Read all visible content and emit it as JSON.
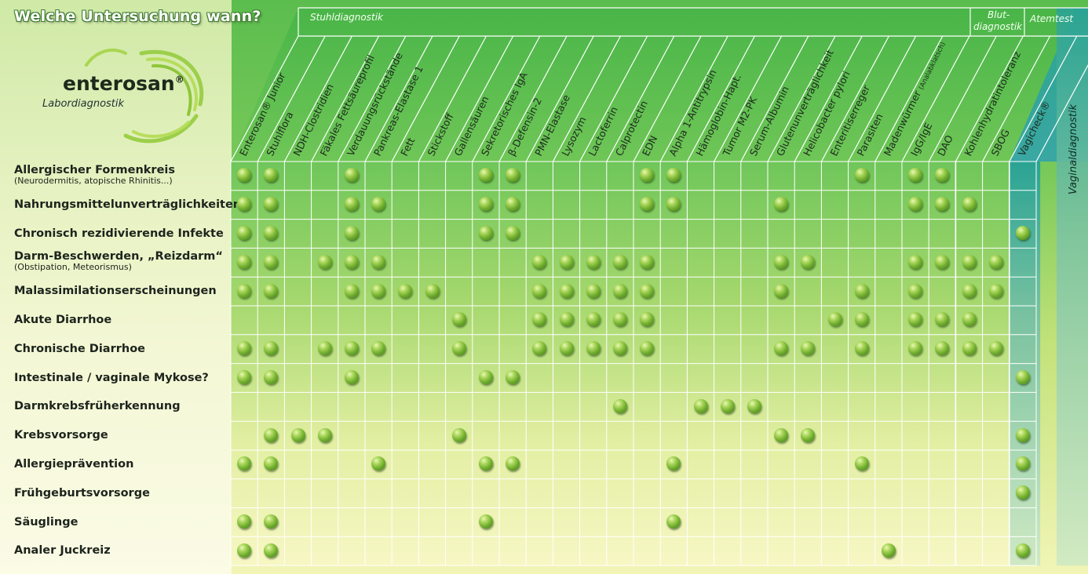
{
  "title": "Welche Untersuchung wann?",
  "brand": {
    "name": "enterosan",
    "reg": "®",
    "subtitle": "Labordiagnostik"
  },
  "categories": {
    "stuhl": "Stuhldiagnostik",
    "blut_line1": "Blut-",
    "blut_line2": "diagnostik",
    "atem": "Atemtest",
    "vaginal": "Vaginaldiagnostik"
  },
  "columns": [
    {
      "label": "Enterosan® Junior",
      "small": ""
    },
    {
      "label": "Stuhlflora",
      "small": ""
    },
    {
      "label": "NDH-Clostridien",
      "small": ""
    },
    {
      "label": "Fäkales Fettsäureprofil",
      "small": ""
    },
    {
      "label": "Verdauungsrückstände",
      "small": ""
    },
    {
      "label": "Pankreas-Elastase 1",
      "small": ""
    },
    {
      "label": "Fett",
      "small": ""
    },
    {
      "label": "Stickstoff",
      "small": ""
    },
    {
      "label": "Gallensäuren",
      "small": ""
    },
    {
      "label": "Sekretorisches IgA",
      "small": ""
    },
    {
      "label": "β-Defensin-2",
      "small": ""
    },
    {
      "label": "PMN-Elastase",
      "small": ""
    },
    {
      "label": "Lysozym",
      "small": ""
    },
    {
      "label": "Lactoferrin",
      "small": ""
    },
    {
      "label": "Calprotectin",
      "small": ""
    },
    {
      "label": "EDN",
      "small": ""
    },
    {
      "label": "Alpha 1-Antitrypsin",
      "small": ""
    },
    {
      "label": "Hämoglobin-Hapt.",
      "small": ""
    },
    {
      "label": "Tumor M2-PK",
      "small": ""
    },
    {
      "label": "Serum-Albumin",
      "small": ""
    },
    {
      "label": "Glutenunverträglichkeit",
      "small": ""
    },
    {
      "label": "Helicobacter pylori",
      "small": ""
    },
    {
      "label": "Enteritiserreger",
      "small": ""
    },
    {
      "label": "Parasiten",
      "small": ""
    },
    {
      "label": "Madenwürmer ",
      "small": "(Analabklatsch)"
    },
    {
      "label": "IgG/IgE",
      "small": ""
    },
    {
      "label": "DAO",
      "small": ""
    },
    {
      "label": "Kohlenhydratintoleranz",
      "small": ""
    },
    {
      "label": "SBOG",
      "small": ""
    },
    {
      "label": "Vagicheck®",
      "small": ""
    }
  ],
  "rows": [
    {
      "label": "Allergischer Formenkreis",
      "sub": "(Neurodermitis, atopische Rhinitis...)",
      "dots": [
        0,
        1,
        4,
        9,
        10,
        15,
        16,
        23,
        25,
        26
      ]
    },
    {
      "label": "Nahrungsmittelunverträglichkeiten",
      "sub": "",
      "dots": [
        0,
        1,
        4,
        5,
        9,
        10,
        15,
        16,
        20,
        25,
        26,
        27
      ]
    },
    {
      "label": "Chronisch rezidivierende Infekte",
      "sub": "",
      "dots": [
        0,
        1,
        4,
        9,
        10,
        29
      ]
    },
    {
      "label": "Darm-Beschwerden, „Reizdarm“",
      "sub": "(Obstipation, Meteorismus)",
      "dots": [
        0,
        1,
        3,
        4,
        5,
        11,
        12,
        13,
        14,
        15,
        20,
        21,
        25,
        26,
        27,
        28
      ]
    },
    {
      "label": "Malassimilationserscheinungen",
      "sub": "",
      "dots": [
        0,
        1,
        4,
        5,
        6,
        7,
        11,
        12,
        13,
        14,
        15,
        20,
        23,
        25,
        27,
        28
      ]
    },
    {
      "label": "Akute Diarrhoe",
      "sub": "",
      "dots": [
        8,
        11,
        12,
        13,
        14,
        15,
        22,
        23,
        25,
        26,
        27
      ]
    },
    {
      "label": "Chronische Diarrhoe",
      "sub": "",
      "dots": [
        0,
        1,
        3,
        4,
        5,
        8,
        11,
        12,
        13,
        14,
        15,
        20,
        21,
        23,
        25,
        26,
        27,
        28
      ]
    },
    {
      "label": "Intestinale / vaginale Mykose?",
      "sub": "",
      "dots": [
        0,
        1,
        4,
        9,
        10,
        29
      ]
    },
    {
      "label": "Darmkrebsfrüherkennung",
      "sub": "",
      "dots": [
        14,
        17,
        18,
        19
      ]
    },
    {
      "label": "Krebsvorsorge",
      "sub": "",
      "dots": [
        1,
        2,
        3,
        8,
        20,
        21,
        29
      ]
    },
    {
      "label": "Allergieprävention",
      "sub": "",
      "dots": [
        0,
        1,
        5,
        9,
        10,
        16,
        23,
        29
      ]
    },
    {
      "label": "Frühgeburtsvorsorge",
      "sub": "",
      "dots": [
        29
      ]
    },
    {
      "label": "Säuglinge",
      "sub": "",
      "dots": [
        0,
        1,
        9,
        16
      ]
    },
    {
      "label": "Analer Juckreiz",
      "sub": "",
      "dots": [
        0,
        1,
        24,
        29
      ]
    }
  ],
  "colors": {
    "dot": "#6aa82a",
    "header_green": "#4fb84a",
    "teal": "#2fa89a",
    "grid_line": "#ffffff"
  }
}
